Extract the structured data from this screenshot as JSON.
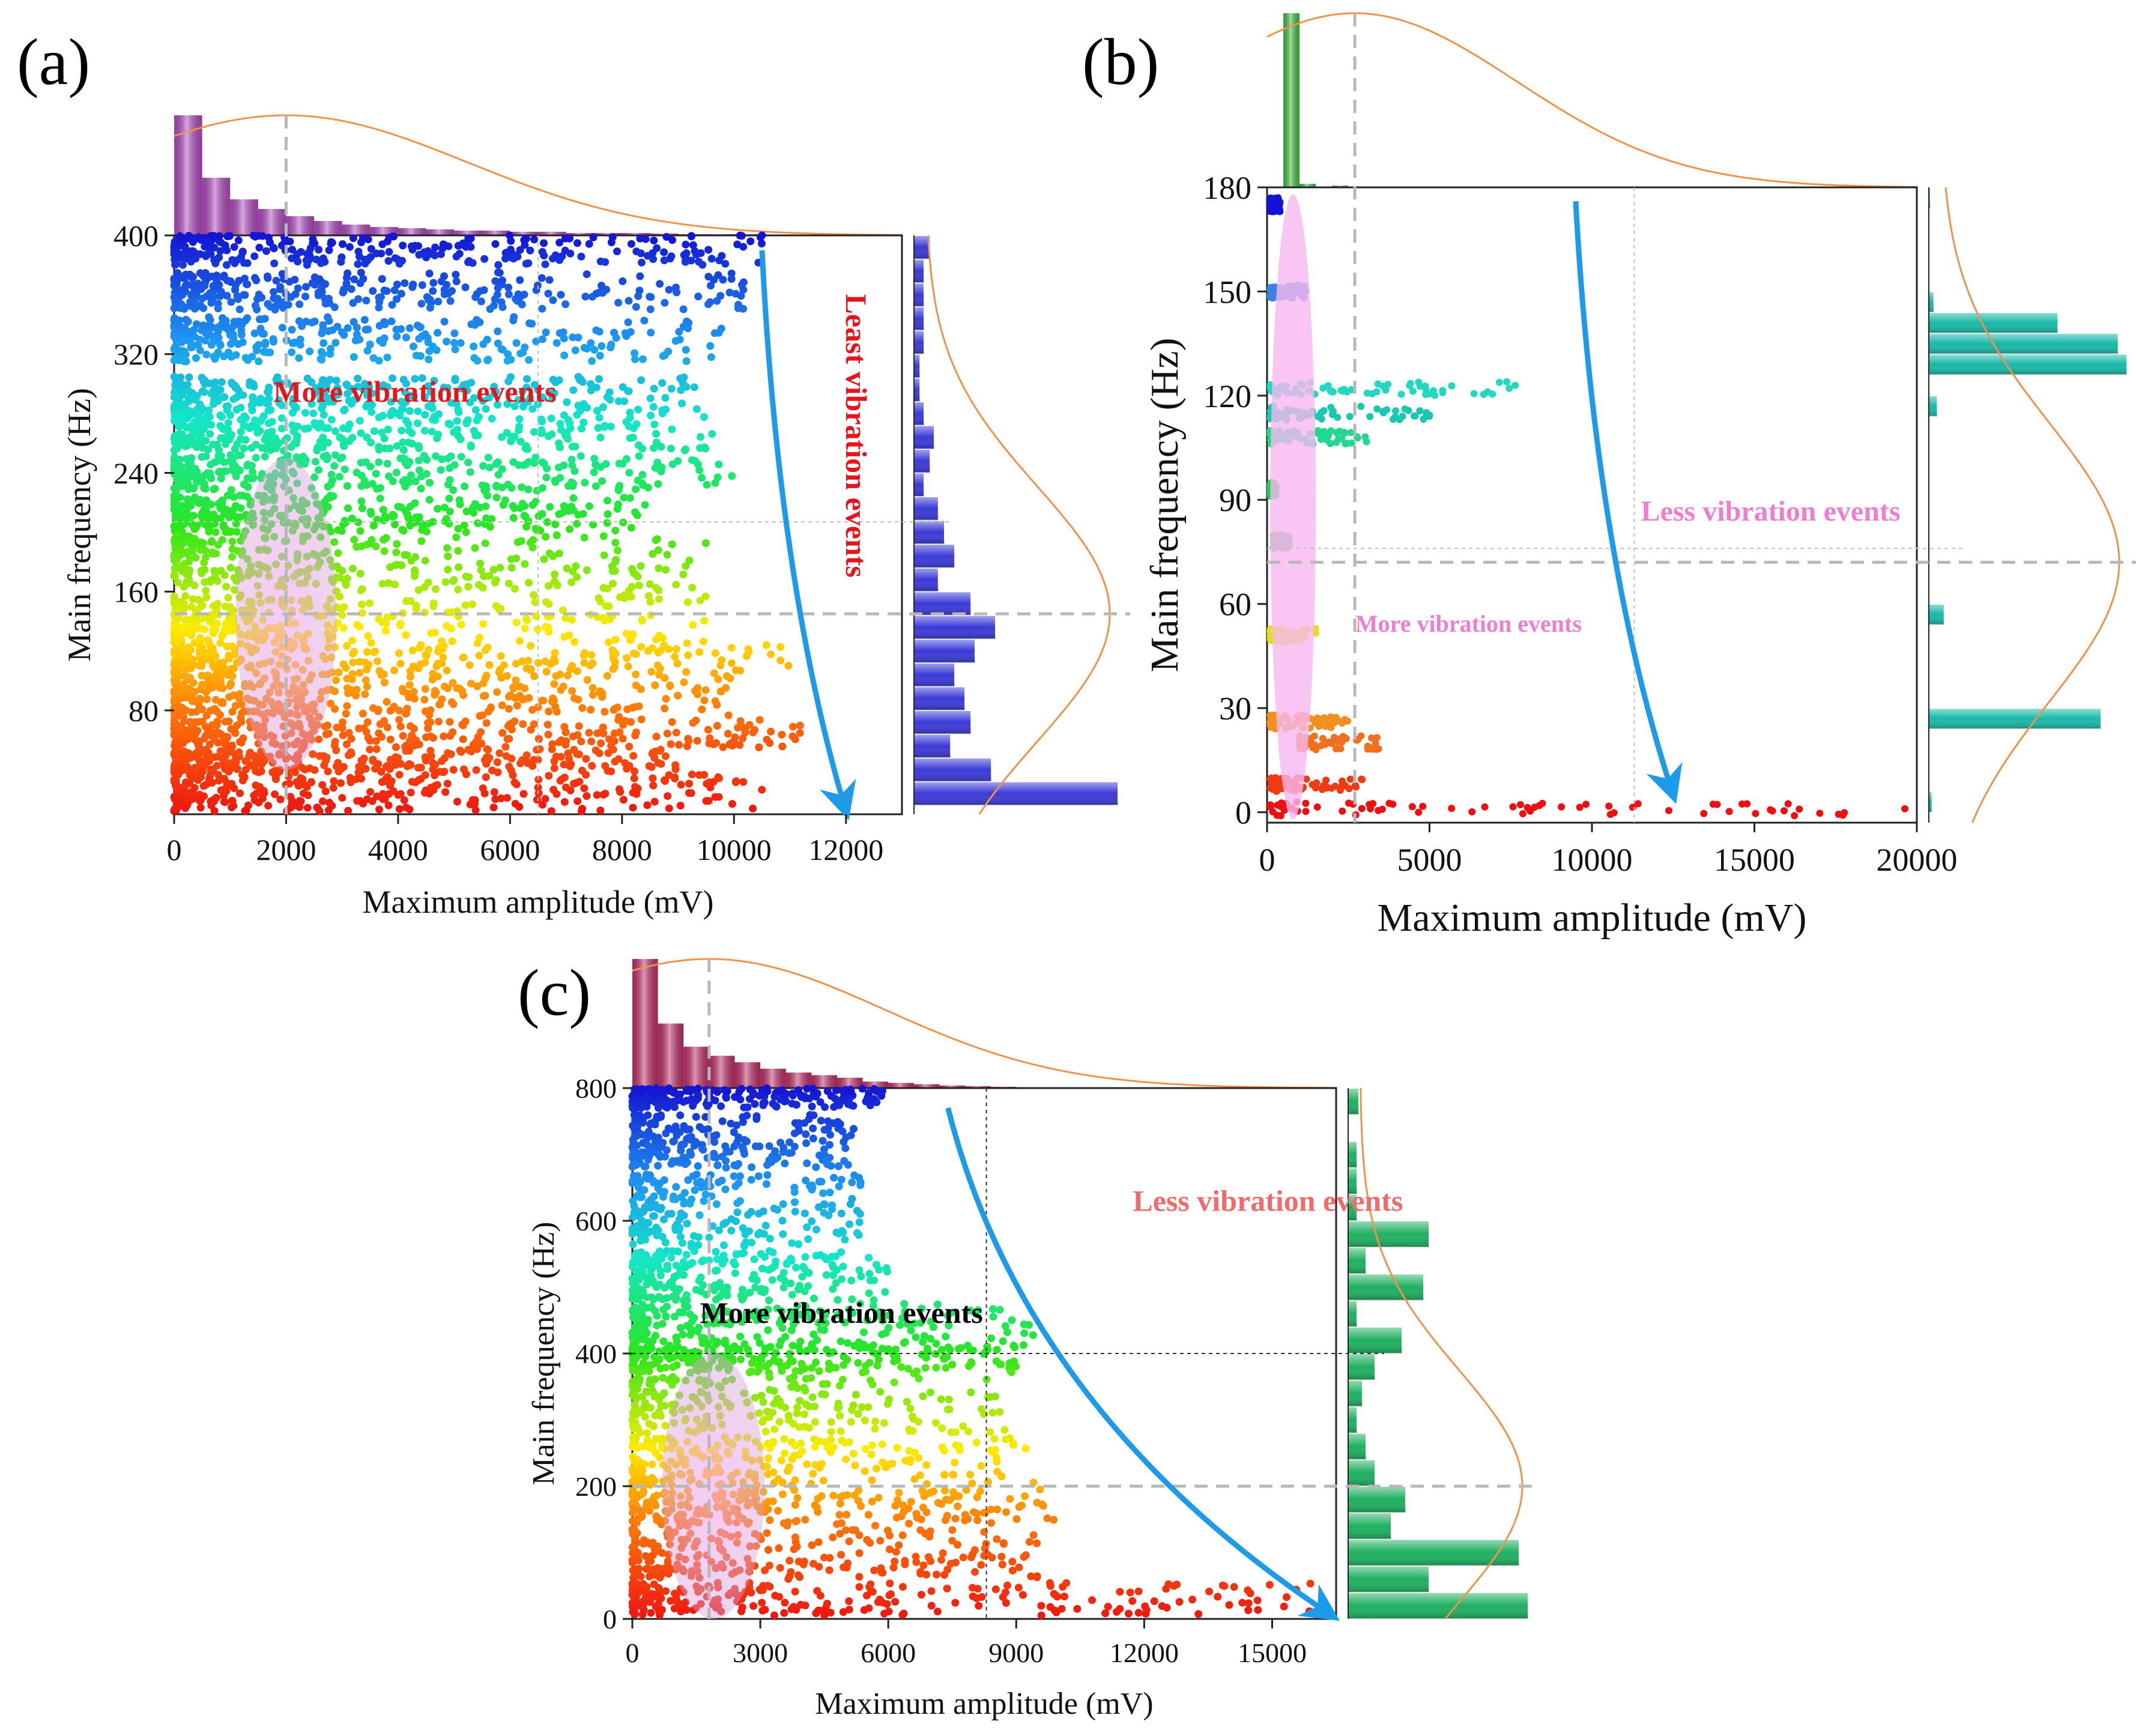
{
  "chart_data": [
    {
      "type": "scatter",
      "panel_label": "(a)",
      "xlabel": "Maximum amplitude (mV)",
      "ylabel": "Main frequency (Hz)",
      "xlim": [
        0,
        13000
      ],
      "ylim": [
        10,
        400
      ],
      "xticks": [
        0,
        2000,
        4000,
        6000,
        8000,
        10000,
        12000
      ],
      "yticks": [
        80,
        160,
        240,
        320,
        400
      ],
      "xtick_labels": [
        "0",
        "2000",
        "4000",
        "6000",
        "8000",
        "10000",
        "12000"
      ],
      "ytick_labels": [
        "80",
        "160",
        "240",
        "320",
        "400"
      ],
      "colormap": "rainbow (red low frequency to blue high frequency)",
      "marker_colors": {
        "low": "#ff2a10",
        "mid": "#22ee22",
        "high": "#1a1ad8"
      },
      "bands": [
        {
          "y": [
            380,
            400
          ],
          "x_max": 10500
        },
        {
          "y": [
            350,
            375
          ],
          "x_max": 10200
        },
        {
          "y": [
            315,
            345
          ],
          "x_max": 9900
        },
        {
          "y": [
            280,
            305
          ],
          "x_max": 9500
        },
        {
          "y": [
            255,
            280
          ],
          "x_max": 9800
        },
        {
          "y": [
            228,
            252
          ],
          "x_max": 10000
        },
        {
          "y": [
            200,
            225
          ],
          "x_max": 8500
        },
        {
          "y": [
            160,
            198
          ],
          "x_max": 9500
        },
        {
          "y": [
            125,
            158
          ],
          "x_max": 9500
        },
        {
          "y": [
            100,
            124
          ],
          "x_max": 11000
        },
        {
          "y": [
            75,
            99
          ],
          "x_max": 10000
        },
        {
          "y": [
            55,
            74
          ],
          "x_max": 11200
        },
        {
          "y": [
            38,
            54
          ],
          "x_max": 9000
        },
        {
          "y": [
            12,
            37
          ],
          "x_max": 10500
        }
      ],
      "top_histogram": {
        "bin_width": 500,
        "values": [
          1.0,
          0.48,
          0.3,
          0.22,
          0.16,
          0.12,
          0.09,
          0.07,
          0.06,
          0.05,
          0.04,
          0.04,
          0.03,
          0.03,
          0.02,
          0.02,
          0.02,
          0.015,
          0.01,
          0.01,
          0.01
        ],
        "color": "#b24cc0"
      },
      "right_histogram": {
        "bin_width": 16,
        "bins_start": 16,
        "values": [
          1.0,
          0.38,
          0.18,
          0.28,
          0.25,
          0.2,
          0.3,
          0.4,
          0.28,
          0.12,
          0.2,
          0.15,
          0.12,
          0.05,
          0.08,
          0.1,
          0.05,
          0.03,
          0.03,
          0.05,
          0.05,
          0.05,
          0.05,
          0.08
        ],
        "color": "#3a3ad8"
      },
      "reference_lines": {
        "x": 2000,
        "y": 145,
        "x_dotted": 6500,
        "y_dotted": 207
      },
      "arrow": {
        "from": [
          10500,
          390
        ],
        "to": [
          12000,
          12
        ],
        "color": "#1e9be8"
      },
      "ellipse": {
        "cx": 2000,
        "cy": 145,
        "rx": 900,
        "ry": 105
      },
      "annotations": [
        {
          "text": "More vibration events",
          "x": 4300,
          "y": 288,
          "color": "#e8141c"
        },
        {
          "text": "Least vibration events",
          "x": 12000,
          "y": 265,
          "color": "#e8141c",
          "rotated": true
        }
      ]
    },
    {
      "type": "scatter",
      "panel_label": "(b)",
      "xlabel": "Maximum amplitude (mV)",
      "ylabel": "Main frequency (Hz)",
      "xlim": [
        0,
        20000
      ],
      "ylim": [
        -3,
        180
      ],
      "xticks": [
        0,
        5000,
        10000,
        15000,
        20000
      ],
      "yticks": [
        0,
        30,
        60,
        90,
        120,
        150,
        180
      ],
      "xtick_labels": [
        "0",
        "5000",
        "10000",
        "15000",
        "20000"
      ],
      "ytick_labels": [
        "0",
        "30",
        "60",
        "90",
        "120",
        "150",
        "180"
      ],
      "clusters": [
        {
          "y": 175,
          "x": [
            100,
            400
          ],
          "color": "#1212d8"
        },
        {
          "y": 150,
          "x": [
            100,
            1200
          ],
          "color": "#3b82e0"
        },
        {
          "y": 122,
          "x": [
            100,
            8000
          ],
          "color": "#22d8c0"
        },
        {
          "y": 115,
          "x": [
            100,
            5000
          ],
          "color": "#18c8b0"
        },
        {
          "y": 108,
          "x": [
            100,
            3500
          ],
          "color": "#22d890"
        },
        {
          "y": 93,
          "x": [
            100,
            300
          ],
          "color": "#28c858"
        },
        {
          "y": 78,
          "x": [
            200,
            700
          ],
          "color": "#64b878"
        },
        {
          "y": 51,
          "x": [
            100,
            1500
          ],
          "color": "#e0e020"
        },
        {
          "y": 26,
          "x": [
            100,
            2500
          ],
          "color": "#f0901e"
        },
        {
          "y": 20,
          "x": [
            1000,
            3500
          ],
          "color": "#f07020"
        },
        {
          "y": 8,
          "x": [
            100,
            3000
          ],
          "color": "#f03a14"
        },
        {
          "y": 1,
          "x": [
            100,
            20000
          ],
          "color": "#ee1010"
        }
      ],
      "top_histogram": {
        "bin_width": 500,
        "values": [
          0.0,
          1.0,
          0.02,
          0.0,
          0.01
        ],
        "color": "#40c040"
      },
      "right_histogram": {
        "bin_width": 6,
        "bins_start": 0,
        "values": [
          0.02,
          0.0,
          0.0,
          0.0,
          1.0,
          0.0,
          0.0,
          0.0,
          0.0,
          0.09,
          0.0,
          0.0,
          0.0,
          0.0,
          0.0,
          0.0,
          0.0,
          0.0,
          0.0,
          0.05,
          0.0,
          1.15,
          1.1,
          0.75,
          0.03,
          0.0,
          0.0,
          0.0,
          0.0,
          0.01
        ],
        "color": "#18b8a8"
      },
      "reference_lines": {
        "x": 2700,
        "y": 72,
        "x_dotted": 11300,
        "y_dotted": 76
      },
      "arrow": {
        "from": [
          9500,
          176
        ],
        "to": [
          12500,
          5
        ],
        "color": "#1e9be8"
      },
      "ellipse": {
        "cx": 800,
        "cy": 88,
        "rx": 700,
        "ry": 90
      },
      "annotations": [
        {
          "text": "Less vibration events",
          "x": 15500,
          "y": 84,
          "color": "#f07ed0"
        },
        {
          "text": "More vibration events",
          "x": 6200,
          "y": 52,
          "color": "#f07ed0"
        }
      ]
    },
    {
      "type": "scatter",
      "panel_label": "(c)",
      "xlabel": "Maximum amplitude (mV)",
      "ylabel": "Main frequency (Hz)",
      "xlim": [
        0,
        16500
      ],
      "ylim": [
        0,
        800
      ],
      "xticks": [
        0,
        3000,
        6000,
        9000,
        12000,
        15000
      ],
      "yticks": [
        0,
        200,
        400,
        600,
        800
      ],
      "xtick_labels": [
        "0",
        "3000",
        "6000",
        "9000",
        "12000",
        "15000"
      ],
      "ytick_labels": [
        "0",
        "200",
        "400",
        "600",
        "800"
      ],
      "bands": [
        {
          "y": [
            770,
            800
          ],
          "x_max": 6000
        },
        {
          "y": [
            680,
            760
          ],
          "x_max": 5200
        },
        {
          "y": [
            560,
            670
          ],
          "x_max": 5400
        },
        {
          "y": [
            480,
            555
          ],
          "x_max": 6000
        },
        {
          "y": [
            410,
            475
          ],
          "x_max": 9500
        },
        {
          "y": [
            370,
            410
          ],
          "x_max": 9000
        },
        {
          "y": [
            280,
            365
          ],
          "x_max": 8800
        },
        {
          "y": [
            200,
            275
          ],
          "x_max": 9500
        },
        {
          "y": [
            140,
            195
          ],
          "x_max": 10000
        },
        {
          "y": [
            60,
            135
          ],
          "x_max": 9500
        },
        {
          "y": [
            5,
            55
          ],
          "x_max": 16000
        }
      ],
      "top_histogram": {
        "bin_width": 600,
        "values": [
          1.0,
          0.5,
          0.32,
          0.25,
          0.2,
          0.15,
          0.12,
          0.1,
          0.08,
          0.05,
          0.04,
          0.03,
          0.02,
          0.015,
          0.01
        ],
        "color": "#c0306a"
      },
      "right_histogram": {
        "bin_width": 40,
        "bins_start": 0,
        "values": [
          1.0,
          0.45,
          0.95,
          0.24,
          0.32,
          0.15,
          0.1,
          0.05,
          0.08,
          0.15,
          0.3,
          0.05,
          0.42,
          0.1,
          0.45,
          0.05,
          0.05,
          0.05,
          0.0,
          0.06
        ],
        "color": "#1fb060"
      },
      "reference_lines": {
        "x": 1800,
        "y": 200,
        "x_dotted": 8300,
        "y_dotted": 400
      },
      "arrow": {
        "from": [
          7400,
          770
        ],
        "to": [
          16400,
          5
        ],
        "color": "#1e9be8"
      },
      "ellipse": {
        "cx": 1900,
        "cy": 200,
        "rx": 1200,
        "ry": 200
      },
      "annotations": [
        {
          "text": "Less vibration events",
          "x": 14900,
          "y": 615,
          "color": "#f06c6c"
        },
        {
          "text": "More vibration events",
          "x": 4900,
          "y": 446,
          "color": "#000000"
        }
      ]
    }
  ]
}
